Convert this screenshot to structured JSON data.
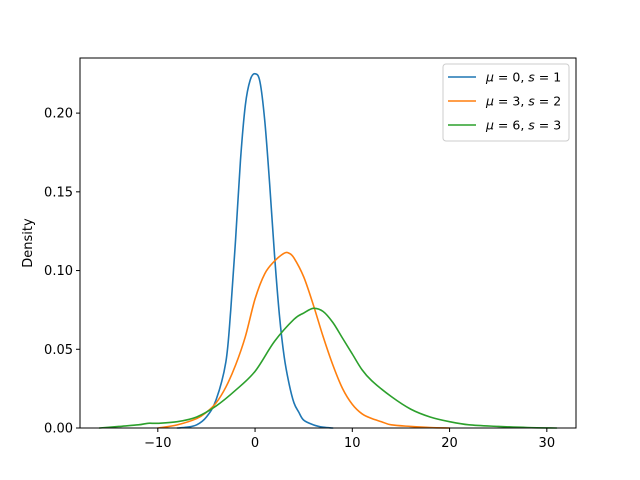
{
  "chart_data": {
    "type": "line",
    "title": "",
    "xlabel": "",
    "ylabel": "Density",
    "xlim": [
      -18,
      33
    ],
    "ylim": [
      0,
      0.235
    ],
    "xticks": [
      -10,
      0,
      10,
      20,
      30
    ],
    "xtick_labels": [
      "−10",
      "0",
      "10",
      "20",
      "30"
    ],
    "yticks": [
      0.0,
      0.05,
      0.1,
      0.15,
      0.2
    ],
    "ytick_labels": [
      "0.00",
      "0.05",
      "0.10",
      "0.15",
      "0.20"
    ],
    "grid": false,
    "legend_position": "top-right",
    "series": [
      {
        "name": "μ = 0, s = 1",
        "label_parts": {
          "mu": "0",
          "s": "1"
        },
        "color": "#1f77b4",
        "x": [
          -8,
          -7,
          -6,
          -5,
          -4,
          -3,
          -2.5,
          -2,
          -1.5,
          -1,
          -0.5,
          0,
          0.5,
          1,
          1.5,
          2,
          2.5,
          3,
          3.5,
          4,
          4.5,
          5,
          6,
          7,
          8
        ],
        "y": [
          0.0,
          0.0005,
          0.002,
          0.007,
          0.018,
          0.042,
          0.075,
          0.12,
          0.17,
          0.205,
          0.221,
          0.225,
          0.22,
          0.195,
          0.155,
          0.11,
          0.072,
          0.045,
          0.028,
          0.016,
          0.01,
          0.005,
          0.002,
          0.0005,
          0.0
        ]
      },
      {
        "name": "μ = 3, s = 2",
        "label_parts": {
          "mu": "3",
          "s": "2"
        },
        "color": "#ff7f0e",
        "x": [
          -10,
          -8,
          -6,
          -5,
          -4,
          -3,
          -2,
          -1,
          0,
          1,
          2,
          3,
          3.5,
          4,
          5,
          6,
          7,
          8,
          9,
          10,
          11,
          12,
          13,
          14,
          16,
          18,
          20
        ],
        "y": [
          0.0,
          0.002,
          0.006,
          0.01,
          0.016,
          0.026,
          0.04,
          0.058,
          0.082,
          0.098,
          0.106,
          0.111,
          0.111,
          0.108,
          0.096,
          0.078,
          0.058,
          0.04,
          0.025,
          0.015,
          0.009,
          0.006,
          0.004,
          0.002,
          0.001,
          0.0003,
          0.0
        ]
      },
      {
        "name": "μ = 6, s = 3",
        "label_parts": {
          "mu": "6",
          "s": "3"
        },
        "color": "#2ca02c",
        "x": [
          -16,
          -14,
          -12,
          -11,
          -10,
          -8,
          -6,
          -4,
          -2,
          0,
          2,
          4,
          5,
          6,
          7,
          8,
          9,
          10,
          11,
          12,
          14,
          16,
          18,
          20,
          22,
          25,
          28,
          31
        ],
        "y": [
          0.0,
          0.001,
          0.002,
          0.003,
          0.003,
          0.004,
          0.007,
          0.014,
          0.024,
          0.036,
          0.055,
          0.069,
          0.073,
          0.076,
          0.074,
          0.067,
          0.057,
          0.047,
          0.037,
          0.03,
          0.02,
          0.012,
          0.007,
          0.004,
          0.002,
          0.001,
          0.0003,
          0.0
        ]
      }
    ]
  }
}
